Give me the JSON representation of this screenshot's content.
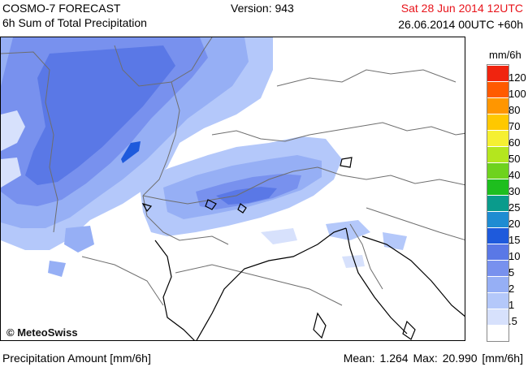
{
  "header": {
    "model": "COSMO-7 FORECAST",
    "product": "6h Sum of Total Precipitation",
    "version": "Version: 943",
    "valid_time": "Sat 28 Jun 2014 12UTC",
    "run": "26.06.2014 00UTC +60h"
  },
  "map": {
    "copyright": "© MeteoSwiss",
    "colors": {
      "land": "#ffffff",
      "border": "#555555",
      "coast": "#000000"
    }
  },
  "legend": {
    "unit": "mm/6h",
    "levels": [
      {
        "label": "120",
        "color": "#f0240f"
      },
      {
        "label": "100",
        "color": "#ff5a00"
      },
      {
        "label": "80",
        "color": "#ff9600"
      },
      {
        "label": "70",
        "color": "#ffc800"
      },
      {
        "label": "60",
        "color": "#f5f032"
      },
      {
        "label": "50",
        "color": "#b4e61e"
      },
      {
        "label": "40",
        "color": "#6ed21e"
      },
      {
        "label": "30",
        "color": "#1ebe1e"
      },
      {
        "label": "25",
        "color": "#0a9b8c"
      },
      {
        "label": "20",
        "color": "#1e8cd2"
      },
      {
        "label": "15",
        "color": "#1e5adc"
      },
      {
        "label": "10",
        "color": "#5a78e6"
      },
      {
        "label": "5",
        "color": "#7891ee"
      },
      {
        "label": "2",
        "color": "#96aff5"
      },
      {
        "label": "1",
        "color": "#b4c8fa"
      },
      {
        "label": ".5",
        "color": "#d7e1fc"
      },
      {
        "label": "",
        "color": "#ffffff"
      }
    ]
  },
  "footer": {
    "left": "Precipitation Amount [mm/6h]",
    "mean_label": "Mean:",
    "mean_value": "1.264",
    "max_label": "Max:",
    "max_value": "20.990",
    "unit": "[mm/6h]"
  }
}
